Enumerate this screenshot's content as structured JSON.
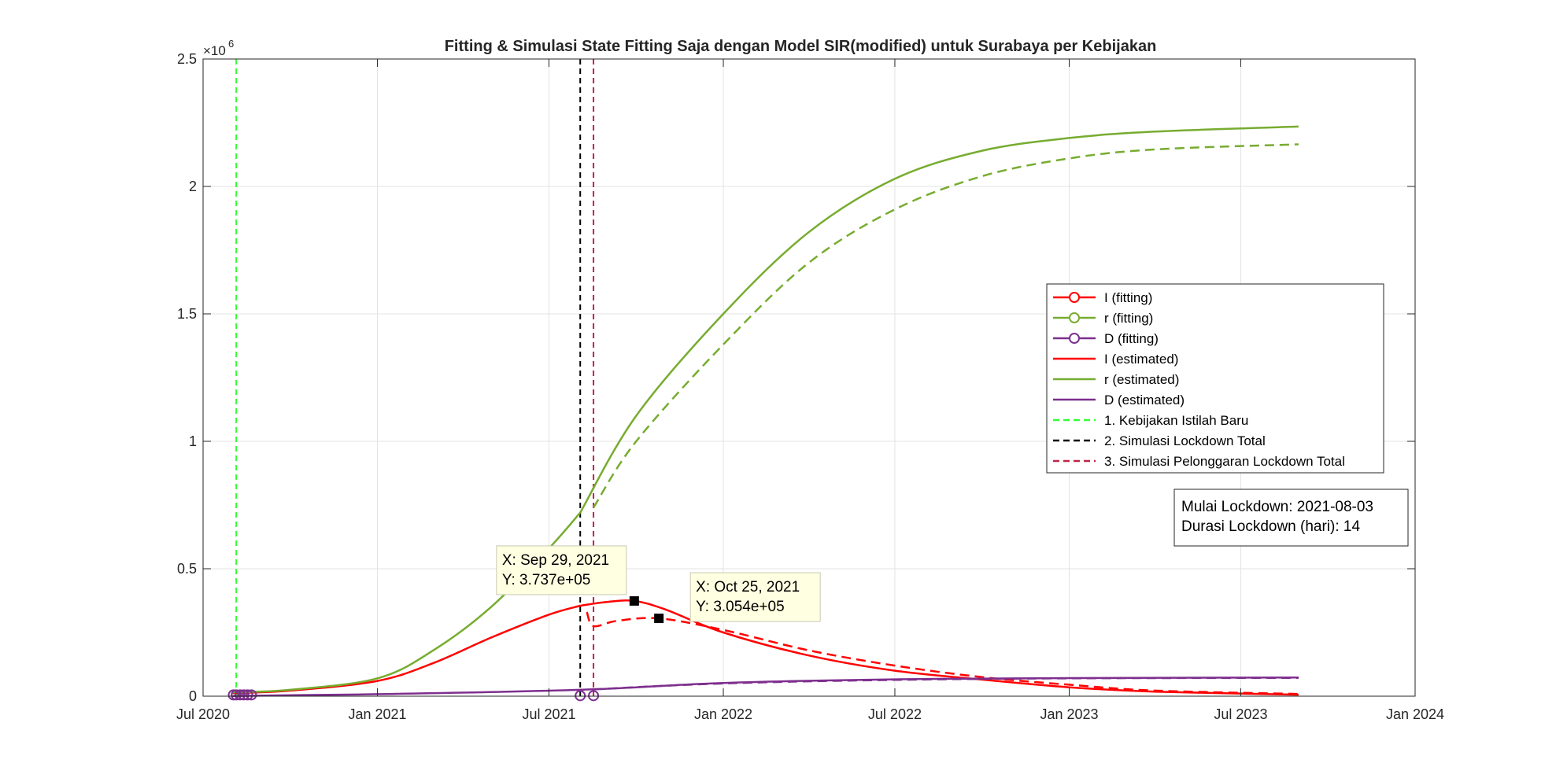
{
  "chart_data": {
    "type": "line",
    "title": "Fitting & Simulasi State Fitting Saja dengan Model SIR(modified) untuk Surabaya per Kebijakan",
    "xlabel": "",
    "ylabel": "",
    "y_exponent_label": "×10",
    "y_exponent_power": "6",
    "x_range": [
      "2020-07-01",
      "2024-01-01"
    ],
    "ylim": [
      0,
      2500000
    ],
    "grid": true,
    "legend_position": "right-center",
    "x_ticks": [
      {
        "date": "2020-07-01",
        "label": "Jul 2020"
      },
      {
        "date": "2021-01-01",
        "label": "Jan 2021"
      },
      {
        "date": "2021-07-01",
        "label": "Jul 2021"
      },
      {
        "date": "2022-01-01",
        "label": "Jan 2022"
      },
      {
        "date": "2022-07-01",
        "label": "Jul 2022"
      },
      {
        "date": "2023-01-01",
        "label": "Jan 2023"
      },
      {
        "date": "2023-07-01",
        "label": "Jul 2023"
      },
      {
        "date": "2024-01-01",
        "label": "Jan 2024"
      }
    ],
    "y_ticks": [
      {
        "value": 0,
        "label": "0"
      },
      {
        "value": 500000,
        "label": "0.5"
      },
      {
        "value": 1000000,
        "label": "1"
      },
      {
        "value": 1500000,
        "label": "1.5"
      },
      {
        "value": 2000000,
        "label": "2"
      },
      {
        "value": 2500000,
        "label": "2.5"
      }
    ],
    "legend": [
      {
        "label": "I (fitting)",
        "color": "#ff0000",
        "style": "solid",
        "marker": "circle"
      },
      {
        "label": "r (fitting)",
        "color": "#77ac30",
        "style": "solid",
        "marker": "circle"
      },
      {
        "label": "D (fitting)",
        "color": "#7e2f8e",
        "style": "solid",
        "marker": "circle"
      },
      {
        "label": "I (estimated)",
        "color": "#ff0000",
        "style": "solid",
        "marker": "none"
      },
      {
        "label": "r (estimated)",
        "color": "#77ac30",
        "style": "solid",
        "marker": "none"
      },
      {
        "label": "D (estimated)",
        "color": "#7e2f8e",
        "style": "solid",
        "marker": "none"
      },
      {
        "label": "1. Kebijakan Istilah Baru",
        "color": "#33ff33",
        "style": "dashed",
        "marker": "none"
      },
      {
        "label": "2. Simulasi Lockdown Total",
        "color": "#000000",
        "style": "dashed",
        "marker": "none"
      },
      {
        "label": "3. Simulasi Pelonggaran Lockdown Total",
        "color": "#c0254a",
        "style": "dashed",
        "marker": "none"
      }
    ],
    "series": [
      {
        "key": "I_fit",
        "color": "#ff0000",
        "style": "solid",
        "width": 2.5,
        "x": [
          "2020-08-01",
          "2020-10-01",
          "2021-01-01",
          "2021-03-01",
          "2021-05-01",
          "2021-07-01",
          "2021-08-03"
        ],
        "values": [
          12000,
          22000,
          60000,
          130000,
          230000,
          320000,
          355000
        ]
      },
      {
        "key": "I_est_lockdown",
        "color": "#ff0000",
        "style": "solid",
        "width": 2.5,
        "x": [
          "2021-08-03",
          "2021-09-01",
          "2021-09-29",
          "2021-11-01",
          "2022-01-01",
          "2022-04-01",
          "2022-07-01",
          "2022-10-01",
          "2023-01-01",
          "2023-04-01",
          "2023-08-31"
        ],
        "values": [
          355000,
          370000,
          373700,
          340000,
          250000,
          160000,
          100000,
          65000,
          35000,
          18000,
          6000
        ]
      },
      {
        "key": "I_est_relax",
        "color": "#ff0000",
        "style": "dashed",
        "width": 2.5,
        "x": [
          "2021-08-10",
          "2021-08-17",
          "2021-09-10",
          "2021-10-25",
          "2022-01-01",
          "2022-04-01",
          "2022-07-01",
          "2022-10-01",
          "2023-01-01",
          "2023-04-01",
          "2023-08-31"
        ],
        "values": [
          330000,
          275000,
          295000,
          305400,
          260000,
          180000,
          120000,
          75000,
          45000,
          22000,
          9000
        ]
      },
      {
        "key": "r_fit",
        "color": "#77ac30",
        "style": "solid",
        "width": 2.5,
        "x": [
          "2020-08-01",
          "2020-10-01",
          "2021-01-01",
          "2021-03-01",
          "2021-05-01",
          "2021-07-01",
          "2021-08-03"
        ],
        "values": [
          15000,
          25000,
          70000,
          180000,
          350000,
          580000,
          720000
        ]
      },
      {
        "key": "r_est_lockdown",
        "color": "#77ac30",
        "style": "solid",
        "width": 2.5,
        "x": [
          "2021-08-03",
          "2021-10-01",
          "2022-01-01",
          "2022-04-01",
          "2022-07-01",
          "2022-10-01",
          "2023-01-01",
          "2023-04-01",
          "2023-08-31"
        ],
        "values": [
          720000,
          1100000,
          1500000,
          1820000,
          2030000,
          2140000,
          2190000,
          2215000,
          2235000
        ]
      },
      {
        "key": "r_est_relax",
        "color": "#77ac30",
        "style": "dashed",
        "width": 2.5,
        "x": [
          "2021-08-17",
          "2021-10-01",
          "2022-01-01",
          "2022-04-01",
          "2022-07-01",
          "2022-10-01",
          "2023-01-01",
          "2023-04-01",
          "2023-08-31"
        ],
        "values": [
          740000,
          1000000,
          1380000,
          1700000,
          1910000,
          2040000,
          2110000,
          2145000,
          2165000
        ]
      },
      {
        "key": "D_est_lockdown",
        "color": "#7e2f8e",
        "style": "solid",
        "width": 2.5,
        "x": [
          "2020-08-01",
          "2021-01-01",
          "2021-08-03",
          "2022-01-01",
          "2022-07-01",
          "2023-01-01",
          "2023-08-31"
        ],
        "values": [
          1000,
          8000,
          25000,
          52000,
          66000,
          71000,
          73000
        ]
      },
      {
        "key": "D_est_relax",
        "color": "#7e2f8e",
        "style": "dashed",
        "width": 2.5,
        "x": [
          "2021-08-17",
          "2022-01-01",
          "2022-07-01",
          "2023-01-01",
          "2023-08-31"
        ],
        "values": [
          27000,
          50000,
          64000,
          70000,
          72000
        ]
      }
    ],
    "vlines": [
      {
        "date": "2020-08-05",
        "color": "#33ff33"
      },
      {
        "date": "2021-08-03",
        "color": "#000000"
      },
      {
        "date": "2021-08-17",
        "color": "#c0254a"
      }
    ],
    "fitting_markers": [
      {
        "date": "2020-08-02",
        "value": 5000,
        "color": "#7e2f8e"
      },
      {
        "date": "2020-08-05",
        "value": 5000,
        "color": "#7e2f8e"
      },
      {
        "date": "2020-08-09",
        "value": 5000,
        "color": "#7e2f8e"
      },
      {
        "date": "2020-08-13",
        "value": 5000,
        "color": "#7e2f8e"
      },
      {
        "date": "2020-08-17",
        "value": 5000,
        "color": "#7e2f8e"
      },
      {
        "date": "2020-08-21",
        "value": 5000,
        "color": "#7e2f8e"
      },
      {
        "date": "2021-08-03",
        "value": 2000,
        "color": "#7e2f8e"
      },
      {
        "date": "2021-08-17",
        "value": 2000,
        "color": "#7e2f8e"
      }
    ],
    "datatips": [
      {
        "date": "2021-09-29",
        "value": 373700,
        "line1": "X: Sep 29, 2021",
        "line2": "Y: 3.737e+05"
      },
      {
        "date": "2021-10-25",
        "value": 305400,
        "line1": "X: Oct 25, 2021",
        "line2": "Y: 3.054e+05"
      }
    ],
    "annotation": {
      "line1": "Mulai Lockdown: 2021-08-03",
      "line2": "Durasi Lockdown (hari): 14"
    }
  }
}
